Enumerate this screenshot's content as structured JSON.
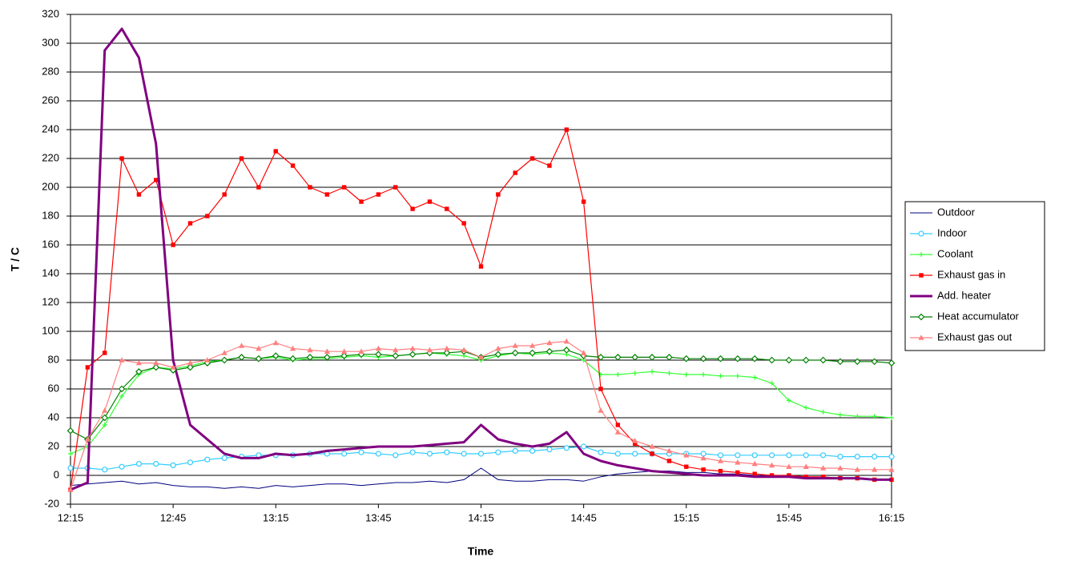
{
  "chart_data": {
    "type": "line",
    "xlabel": "Time",
    "ylabel": "T / C",
    "x": [
      "12:15",
      "12:20",
      "12:25",
      "12:30",
      "12:35",
      "12:40",
      "12:45",
      "12:50",
      "12:55",
      "13:00",
      "13:05",
      "13:10",
      "13:15",
      "13:20",
      "13:25",
      "13:30",
      "13:35",
      "13:40",
      "13:45",
      "13:50",
      "13:55",
      "14:00",
      "14:05",
      "14:10",
      "14:15",
      "14:20",
      "14:25",
      "14:30",
      "14:35",
      "14:40",
      "14:45",
      "14:50",
      "14:55",
      "15:00",
      "15:05",
      "15:10",
      "15:15",
      "15:20",
      "15:25",
      "15:30",
      "15:35",
      "15:40",
      "15:45",
      "15:50",
      "15:55",
      "16:00",
      "16:05",
      "16:10",
      "16:15"
    ],
    "xticks": [
      "12:15",
      "12:45",
      "13:15",
      "13:45",
      "14:15",
      "14:45",
      "15:15",
      "15:45",
      "16:15"
    ],
    "ylim": [
      -20,
      320
    ],
    "yticks": [
      -20,
      0,
      20,
      40,
      60,
      80,
      100,
      120,
      140,
      160,
      180,
      200,
      220,
      240,
      260,
      280,
      300,
      320
    ],
    "grid": true,
    "legend": "right",
    "series": [
      {
        "name": "Outdoor",
        "color": "#000080",
        "marker": "none",
        "values": [
          -7,
          -6,
          -5,
          -4,
          -6,
          -5,
          -7,
          -8,
          -8,
          -9,
          -8,
          -9,
          -7,
          -8,
          -7,
          -6,
          -6,
          -7,
          -6,
          -5,
          -5,
          -4,
          -5,
          -3,
          5,
          -3,
          -4,
          -4,
          -3,
          -3,
          -4,
          -1,
          1,
          2,
          3,
          3,
          2,
          2,
          1,
          1,
          0,
          0,
          -1,
          -1,
          -2,
          -2,
          -2,
          -3,
          -3
        ]
      },
      {
        "name": "Indoor",
        "color": "#33CCFF",
        "marker": "circle",
        "values": [
          5,
          5,
          4,
          6,
          8,
          8,
          7,
          9,
          11,
          12,
          13,
          14,
          14,
          14,
          15,
          15,
          15,
          16,
          15,
          14,
          16,
          15,
          16,
          15,
          15,
          16,
          17,
          17,
          18,
          19,
          20,
          16,
          15,
          15,
          15,
          15,
          15,
          15,
          14,
          14,
          14,
          14,
          14,
          14,
          14,
          13,
          13,
          13,
          13
        ]
      },
      {
        "name": "Coolant",
        "color": "#33FF33",
        "marker": "plus",
        "values": [
          15,
          20,
          35,
          55,
          70,
          75,
          74,
          76,
          79,
          80,
          82,
          81,
          82,
          80,
          81,
          81,
          82,
          83,
          82,
          83,
          84,
          85,
          84,
          83,
          80,
          83,
          85,
          84,
          85,
          84,
          80,
          70,
          70,
          71,
          72,
          71,
          70,
          70,
          69,
          69,
          68,
          64,
          52,
          47,
          44,
          42,
          41,
          41,
          40
        ]
      },
      {
        "name": "Exhaust gas in",
        "color": "#FF0000",
        "marker": "square",
        "values": [
          -10,
          75,
          85,
          220,
          195,
          205,
          160,
          175,
          180,
          195,
          220,
          200,
          225,
          215,
          200,
          195,
          200,
          190,
          195,
          200,
          185,
          190,
          185,
          175,
          145,
          195,
          210,
          220,
          215,
          240,
          190,
          60,
          35,
          22,
          15,
          10,
          6,
          4,
          3,
          2,
          1,
          0,
          0,
          -1,
          -1,
          -2,
          -2,
          -3,
          -3
        ]
      },
      {
        "name": "Add. heater",
        "color": "#800080",
        "marker": "none",
        "values": [
          -10,
          -5,
          295,
          310,
          290,
          230,
          80,
          35,
          25,
          15,
          12,
          12,
          15,
          14,
          15,
          17,
          18,
          19,
          20,
          20,
          20,
          21,
          22,
          23,
          35,
          25,
          22,
          20,
          22,
          30,
          15,
          10,
          7,
          5,
          3,
          2,
          1,
          0,
          0,
          0,
          -1,
          -1,
          -1,
          -2,
          -2,
          -2,
          -2,
          -3,
          -3
        ]
      },
      {
        "name": "Heat accumulator",
        "color": "#008000",
        "marker": "diamond",
        "values": [
          31,
          25,
          40,
          60,
          72,
          75,
          73,
          75,
          78,
          80,
          82,
          81,
          83,
          81,
          82,
          82,
          83,
          84,
          84,
          83,
          84,
          85,
          85,
          86,
          82,
          84,
          85,
          85,
          86,
          87,
          83,
          82,
          82,
          82,
          82,
          82,
          81,
          81,
          81,
          81,
          81,
          80,
          80,
          80,
          80,
          79,
          79,
          79,
          78
        ]
      },
      {
        "name": "Exhaust gas out",
        "color": "#FF8080",
        "marker": "triangle",
        "values": [
          -10,
          25,
          45,
          80,
          78,
          78,
          75,
          78,
          80,
          85,
          90,
          88,
          92,
          88,
          87,
          86,
          86,
          86,
          88,
          87,
          88,
          87,
          88,
          87,
          82,
          88,
          90,
          90,
          92,
          93,
          85,
          45,
          30,
          24,
          20,
          17,
          14,
          12,
          10,
          9,
          8,
          7,
          6,
          6,
          5,
          5,
          4,
          4,
          4
        ]
      }
    ]
  }
}
